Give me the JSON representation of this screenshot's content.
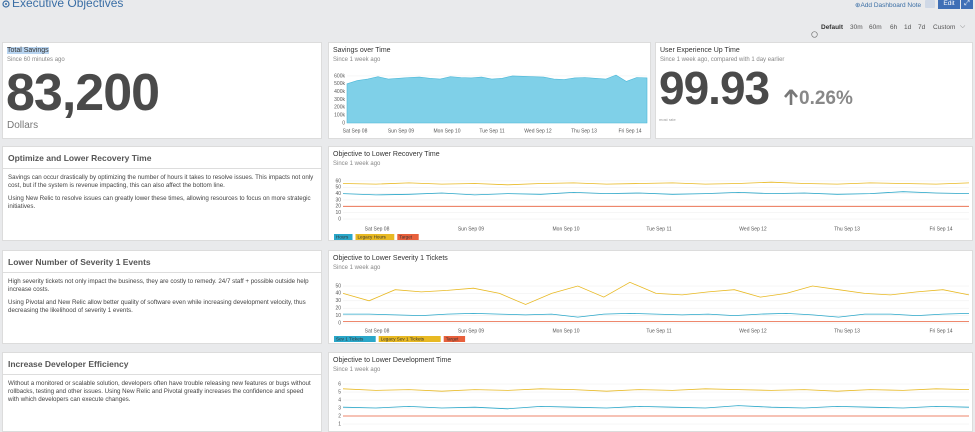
{
  "header": {
    "title": "Executive Objectives",
    "add_note": "Add Dashboard Note",
    "edit": "Edit"
  },
  "time_picker": [
    "Default",
    "30m",
    "60m",
    "6h",
    "1d",
    "7d",
    "Custom"
  ],
  "billboards": [
    {
      "title": "Total Savings",
      "subtitle": "Since 60 minutes ago",
      "value": "83,200",
      "unit": "Dollars"
    },
    {
      "title": "User Experience Up Time",
      "subtitle": "Since 1 week ago, compared with 1 day earlier",
      "value": "99.93",
      "change": "0.26%",
      "note": "most rate"
    }
  ],
  "text_panels": [
    {
      "title": "Optimize and Lower Recovery Time",
      "paragraphs": [
        "Savings can occur drastically by optimizing the number of hours it takes to resolve issues. This impacts not only cost, but if the system is revenue impacting, this can also affect the bottom line.",
        "Using New Relic to resolve issues can greatly lower these times, allowing resources to focus on more strategic initiatives."
      ]
    },
    {
      "title": "Lower Number of Severity 1 Events",
      "paragraphs": [
        "High severity tickets not only impact the business, they are costly to remedy. 24/7 staff + possible outside help increase costs.",
        "Using Pivotal and New Relic allow better quality of software even while increasing development velocity, thus decreasing the likelihood of severity 1 events."
      ]
    },
    {
      "title": "Increase Developer Efficiency",
      "paragraphs": [
        "Without a monitored or scalable solution, developers often have trouble releasing new features or bugs without rollbacks, testing and other issues. Using New Relic and Pivotal greatly increases the confidence and speed with which developers can execute changes."
      ]
    }
  ],
  "chart_data": [
    {
      "type": "area",
      "title": "Savings over Time",
      "subtitle": "Since 1 week ago",
      "ylim": [
        0,
        650000
      ],
      "yticks": [
        0,
        {
          "value": 100000,
          "label": "100k"
        },
        {
          "value": 200000,
          "label": "200k"
        },
        {
          "value": 300000,
          "label": "300k"
        },
        {
          "value": 400000,
          "label": "400k"
        },
        {
          "value": 500000,
          "label": "500k"
        },
        {
          "value": 600000,
          "label": "600k"
        }
      ],
      "x_labels": [
        "Sat Sep 08",
        "Sun Sep 09",
        "Mon Sep 10",
        "Tue Sep 11",
        "Wed Sep 12",
        "Thu Sep 13",
        "Fri Sep 14"
      ],
      "grid": true,
      "series": [
        {
          "color": "#7fd0e8",
          "values": [
            500000,
            540000,
            560000,
            590000,
            560000,
            570000,
            580000,
            585000,
            570000,
            560000,
            590000,
            580000,
            575000,
            585000,
            560000,
            570000,
            600000,
            595000,
            590000,
            585000,
            560000,
            555000,
            575000,
            580000,
            570000,
            560000,
            610000,
            530000,
            580000,
            575000
          ]
        }
      ]
    },
    {
      "type": "line",
      "title": "Objective to Lower Recovery Time",
      "subtitle": "Since 1 week ago",
      "ylim": [
        0,
        65
      ],
      "yticks": [
        0,
        10,
        20,
        30,
        40,
        50,
        60
      ],
      "x_labels": [
        "Sat Sep 08",
        "Sun Sep 09",
        "Mon Sep 10",
        "Tue Sep 11",
        "Wed Sep 12",
        "Thu Sep 13",
        "Fri Sep 14"
      ],
      "grid": true,
      "series": [
        {
          "name": "Hours",
          "color": "#2aa7c9",
          "values": [
            40,
            38,
            39,
            41,
            38,
            40,
            39,
            42,
            40,
            41,
            39,
            40,
            42,
            40,
            41,
            39,
            40,
            43,
            41,
            40
          ]
        },
        {
          "name": "Legacy Hours",
          "color": "#e8b923",
          "values": [
            56,
            55,
            57,
            55,
            56,
            54,
            56,
            57,
            55,
            56,
            57,
            55,
            56,
            58,
            56,
            55,
            57,
            56,
            55,
            57
          ]
        },
        {
          "name": "Target",
          "color": "#e8603c",
          "values": [
            20,
            20,
            20,
            20,
            20,
            20,
            20,
            20,
            20,
            20,
            20,
            20,
            20,
            20,
            20,
            20,
            20,
            20,
            20,
            20
          ]
        }
      ]
    },
    {
      "type": "line",
      "title": "Objective to Lower Severity 1 Tickets",
      "subtitle": "Since 1 week ago",
      "ylim": [
        0,
        55
      ],
      "yticks": [
        0,
        10,
        20,
        30,
        40,
        50
      ],
      "x_labels": [
        "Sat Sep 08",
        "Sun Sep 09",
        "Mon Sep 10",
        "Tue Sep 11",
        "Wed Sep 12",
        "Thu Sep 13",
        "Fri Sep 14"
      ],
      "grid": true,
      "series": [
        {
          "name": "Sev 1 Tickets",
          "color": "#2aa7c9",
          "values": [
            12,
            12,
            11,
            10,
            12,
            13,
            12,
            11,
            12,
            8,
            12,
            13,
            12,
            11,
            12,
            10,
            12,
            13,
            11,
            8,
            12,
            12,
            10,
            12,
            13
          ]
        },
        {
          "name": "Legacy Sev 1 Tickets",
          "color": "#e8b923",
          "values": [
            40,
            30,
            45,
            42,
            44,
            47,
            40,
            25,
            40,
            50,
            35,
            55,
            40,
            38,
            42,
            45,
            35,
            40,
            50,
            45,
            40,
            38,
            42,
            45,
            38
          ]
        },
        {
          "name": "Target",
          "color": "#e8603c",
          "values": [
            2,
            2,
            2,
            2,
            2,
            2,
            2,
            2,
            2,
            2,
            2,
            2,
            2,
            2,
            2,
            2,
            2,
            2,
            2,
            2,
            2,
            2,
            2,
            2,
            2
          ]
        }
      ]
    },
    {
      "type": "line",
      "title": "Objective to Lower Development Time",
      "subtitle": "Since 1 week ago",
      "ylim": [
        0.5,
        6.5
      ],
      "yticks": [
        1,
        2,
        3,
        4,
        5,
        6
      ],
      "grid": true,
      "series": [
        {
          "color": "#2aa7c9",
          "values": [
            3.1,
            3.0,
            3.2,
            3.0,
            3.1,
            2.9,
            3.2,
            3.1,
            3.0,
            3.2,
            3.1,
            3.0,
            3.3,
            3.1,
            3.0,
            3.2,
            3.1,
            3.0,
            3.2,
            3.1
          ]
        },
        {
          "color": "#e8b923",
          "values": [
            5.4,
            5.2,
            5.3,
            5.1,
            5.3,
            5.2,
            5.4,
            5.3,
            5.1,
            5.3,
            5.2,
            5.4,
            5.3,
            5.2,
            5.3,
            5.1,
            5.3,
            5.2,
            5.4,
            5.3
          ]
        },
        {
          "color": "#e8603c",
          "values": [
            2,
            2,
            2,
            2,
            2,
            2,
            2,
            2,
            2,
            2,
            2,
            2,
            2,
            2,
            2,
            2,
            2,
            2,
            2,
            2
          ]
        }
      ]
    }
  ]
}
